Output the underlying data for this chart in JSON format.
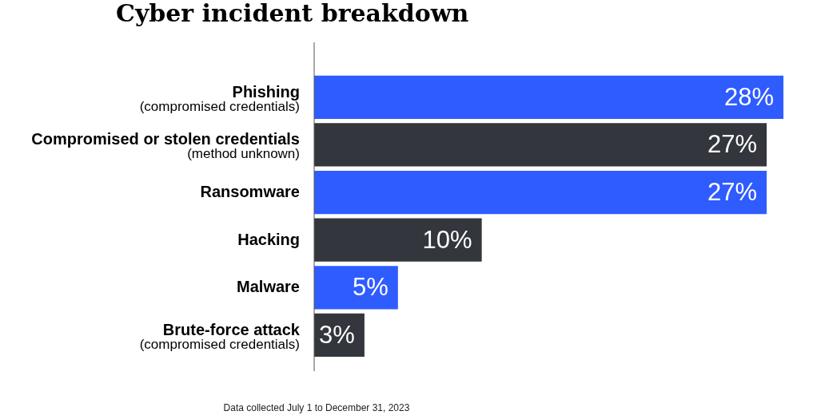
{
  "chart_data": {
    "type": "bar",
    "orientation": "horizontal",
    "title": "Cyber incident breakdown",
    "categories": [
      "Phishing\n(compromised credentials)",
      "Compromised or stolen credentials\n(method unknown)",
      "Ransomware",
      "Hacking",
      "Malware",
      "Brute-force attack\n(compromised credentials)"
    ],
    "values": [
      28,
      27,
      27,
      10,
      5,
      3
    ],
    "colors": [
      "#2f5cff",
      "#33363d",
      "#2f5cff",
      "#33363d",
      "#2f5cff",
      "#33363d"
    ],
    "value_labels": [
      "28%",
      "27%",
      "27%",
      "10%",
      "5%",
      "3%"
    ],
    "annotations": [
      "Data collected July 1 to December 31, 2023"
    ]
  }
}
